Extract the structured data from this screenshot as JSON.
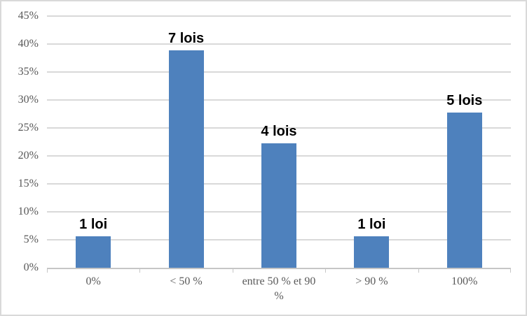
{
  "chart_data": {
    "type": "bar",
    "title": "",
    "xlabel": "",
    "ylabel": "",
    "categories": [
      "0%",
      "< 50 %",
      "entre 50 % et 90 %",
      "> 90 %",
      "100%"
    ],
    "values": [
      5.6,
      38.9,
      22.2,
      5.6,
      27.8
    ],
    "bar_labels": [
      "1 loi",
      "7 lois",
      "4 lois",
      "1 loi",
      "5 lois"
    ],
    "ylim": [
      0,
      45
    ],
    "ytick_step": 5,
    "ytick_labels": [
      "0%",
      "5%",
      "10%",
      "15%",
      "20%",
      "25%",
      "30%",
      "35%",
      "40%",
      "45%"
    ],
    "grid": true,
    "legend": false,
    "colors": {
      "bar": "#4e81bd",
      "gridline": "#d9d9d9",
      "axis_line": "#c6c6c6",
      "axis_text": "#595959",
      "data_label_text": "#000000",
      "frame_border": "#d9d9d9",
      "background": "#ffffff"
    }
  }
}
